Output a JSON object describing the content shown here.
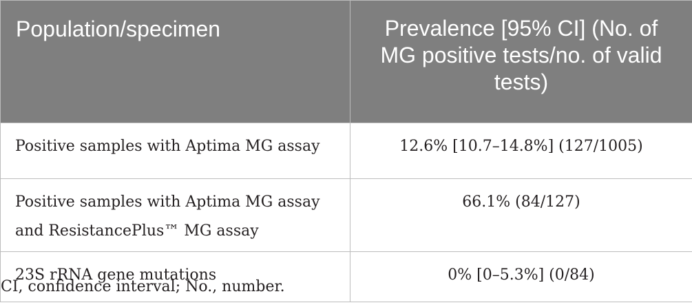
{
  "table": {
    "headers": [
      "Population/specimen",
      "Prevalence [95% CI] (No. of MG positive tests/no. of valid tests)"
    ],
    "rows": [
      {
        "population": "Positive samples with Aptima MG assay",
        "prevalence": "12.6% [10.7–14.8%] (127/1005)"
      },
      {
        "population": "Positive samples with Aptima MG assay and ResistancePlus™ MG assay",
        "prevalence": "66.1% (84/127)"
      },
      {
        "population": "23S rRNA gene mutations",
        "prevalence": "0% [0–5.3%] (0/84)"
      }
    ]
  },
  "footnote": "CI, confidence interval; No., number.",
  "colors": {
    "header_background": "#7f7f7f",
    "header_text": "#ffffff",
    "border": "#bcbcbc",
    "body_text": "#231f20"
  }
}
